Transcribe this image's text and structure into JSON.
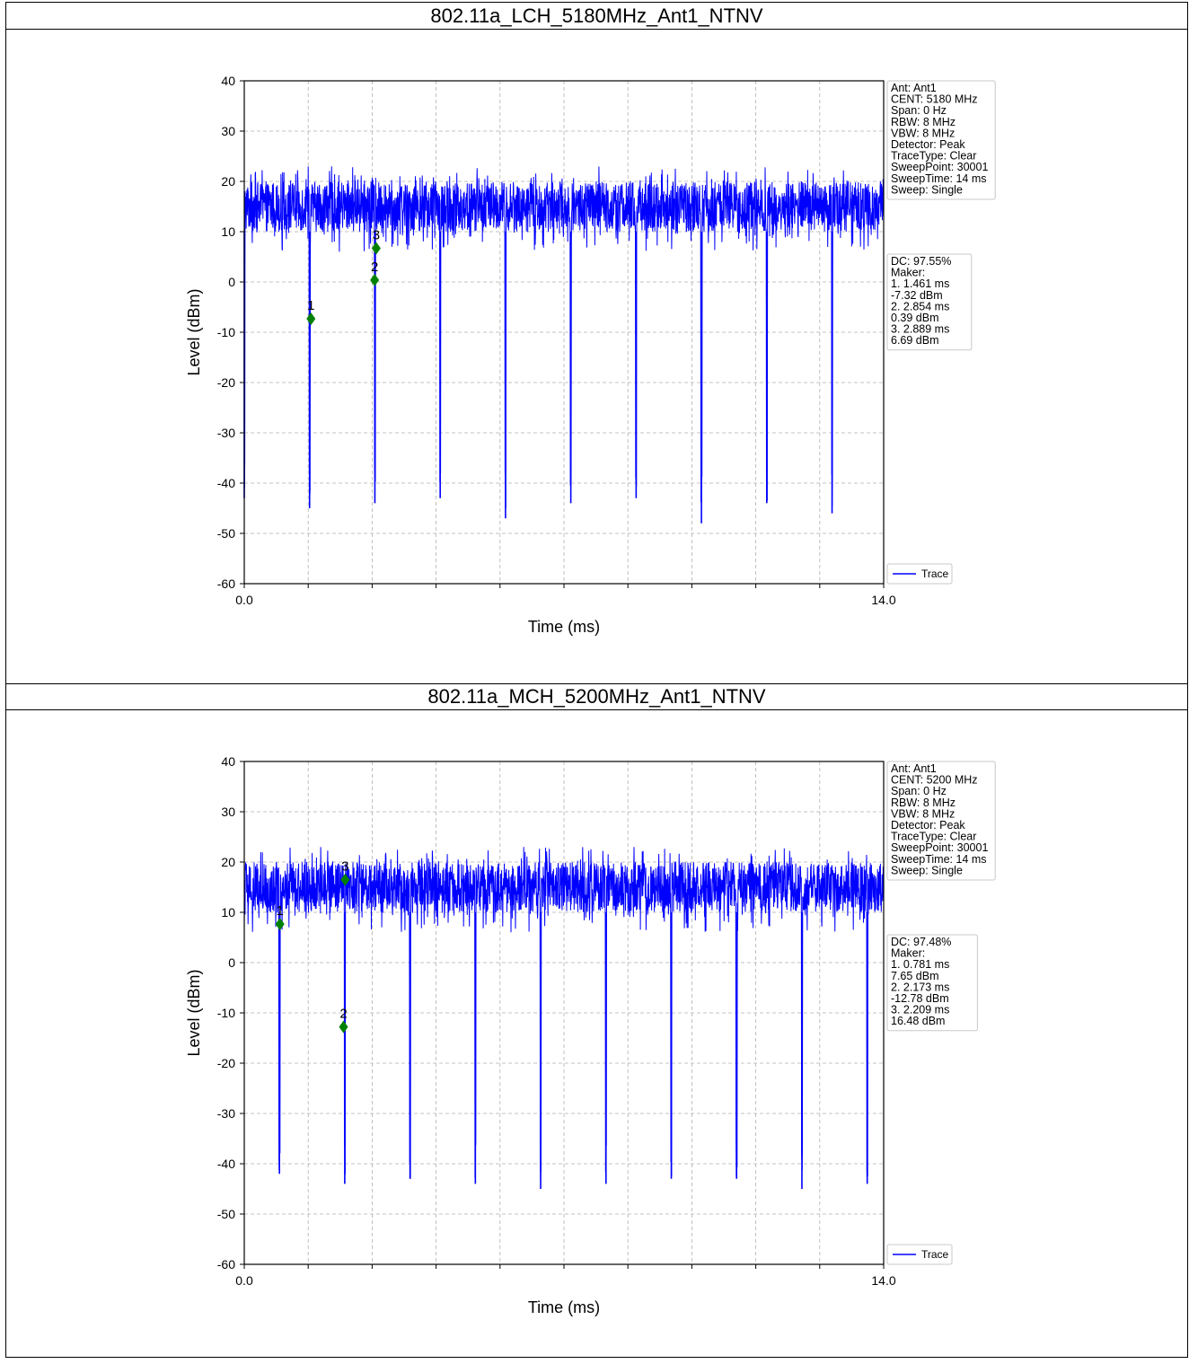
{
  "panels": [
    {
      "title": "802.11a_LCH_5180MHz_Ant1_NTNV",
      "chart_data": {
        "type": "line",
        "title": "802.11a_LCH_5180MHz_Ant1_NTNV",
        "xlabel": "Time (ms)",
        "ylabel": "Level (dBm)",
        "xlim": [
          0.0,
          14.0
        ],
        "ylim": [
          -60,
          40
        ],
        "x_tick_labels": [
          "0.0",
          "14.0"
        ],
        "x_minor_ticks": [
          0,
          1.4,
          2.8,
          4.2,
          5.6,
          7.0,
          8.4,
          9.8,
          11.2,
          12.6,
          14.0
        ],
        "y_ticks": [
          40,
          30,
          20,
          10,
          0,
          -10,
          -20,
          -30,
          -40,
          -50,
          -60
        ],
        "grid": true,
        "legend_position": "bottom-right",
        "series": [
          {
            "name": "Trace",
            "color": "#0000ff",
            "on_level_range": [
              10,
              20
            ],
            "gap_times_ms": [
              0.0,
              1.43,
              2.86,
              4.29,
              5.72,
              7.15,
              8.58,
              10.01,
              11.44,
              12.87
            ],
            "gap_min_levels_dBm": [
              -43,
              -45,
              -44,
              -43,
              -47,
              -44,
              -43,
              -48,
              -44,
              -46
            ]
          }
        ],
        "markers": [
          {
            "label": "1",
            "x": 1.461,
            "y": -7.32
          },
          {
            "label": "2",
            "x": 2.854,
            "y": 0.39
          },
          {
            "label": "3",
            "x": 2.889,
            "y": 6.69
          }
        ],
        "info_box": [
          "Ant: Ant1",
          "CENT: 5180 MHz",
          "Span: 0 Hz",
          "RBW: 8 MHz",
          "VBW: 8 MHz",
          "Detector: Peak",
          "TraceType: Clear",
          "SweepPoint: 30001",
          "SweepTime: 14 ms",
          "Sweep: Single"
        ],
        "dc_box": [
          "DC: 97.55%",
          "Maker:",
          "1. 1.461 ms",
          "    -7.32 dBm",
          "2. 2.854 ms",
          "    0.39 dBm",
          "3. 2.889 ms",
          "    6.69 dBm"
        ]
      }
    },
    {
      "title": "802.11a_MCH_5200MHz_Ant1_NTNV",
      "chart_data": {
        "type": "line",
        "title": "802.11a_MCH_5200MHz_Ant1_NTNV",
        "xlabel": "Time (ms)",
        "ylabel": "Level (dBm)",
        "xlim": [
          0.0,
          14.0
        ],
        "ylim": [
          -60,
          40
        ],
        "x_tick_labels": [
          "0.0",
          "14.0"
        ],
        "x_minor_ticks": [
          0,
          1.4,
          2.8,
          4.2,
          5.6,
          7.0,
          8.4,
          9.8,
          11.2,
          12.6,
          14.0
        ],
        "y_ticks": [
          40,
          30,
          20,
          10,
          0,
          -10,
          -20,
          -30,
          -40,
          -50,
          -60
        ],
        "grid": true,
        "legend_position": "bottom-right",
        "series": [
          {
            "name": "Trace",
            "color": "#0000ff",
            "on_level_range": [
              10,
              20
            ],
            "gap_times_ms": [
              0.77,
              2.2,
              3.63,
              5.06,
              6.49,
              7.92,
              9.35,
              10.78,
              12.21,
              13.64
            ],
            "gap_min_levels_dBm": [
              -42,
              -44,
              -43,
              -44,
              -45,
              -44,
              -43,
              -43,
              -45,
              -44
            ]
          }
        ],
        "markers": [
          {
            "label": "1",
            "x": 0.781,
            "y": 7.65
          },
          {
            "label": "2",
            "x": 2.173,
            "y": -12.78
          },
          {
            "label": "3",
            "x": 2.209,
            "y": 16.48
          }
        ],
        "info_box": [
          "Ant: Ant1",
          "CENT: 5200 MHz",
          "Span: 0 Hz",
          "RBW: 8 MHz",
          "VBW: 8 MHz",
          "Detector: Peak",
          "TraceType: Clear",
          "SweepPoint: 30001",
          "SweepTime: 14 ms",
          "Sweep: Single"
        ],
        "dc_box": [
          "DC: 97.48%",
          "Maker:",
          "1. 0.781 ms",
          "    7.65 dBm",
          "2. 2.173 ms",
          "    -12.78 dBm",
          "3. 2.209 ms",
          "    16.48 dBm"
        ]
      }
    }
  ]
}
